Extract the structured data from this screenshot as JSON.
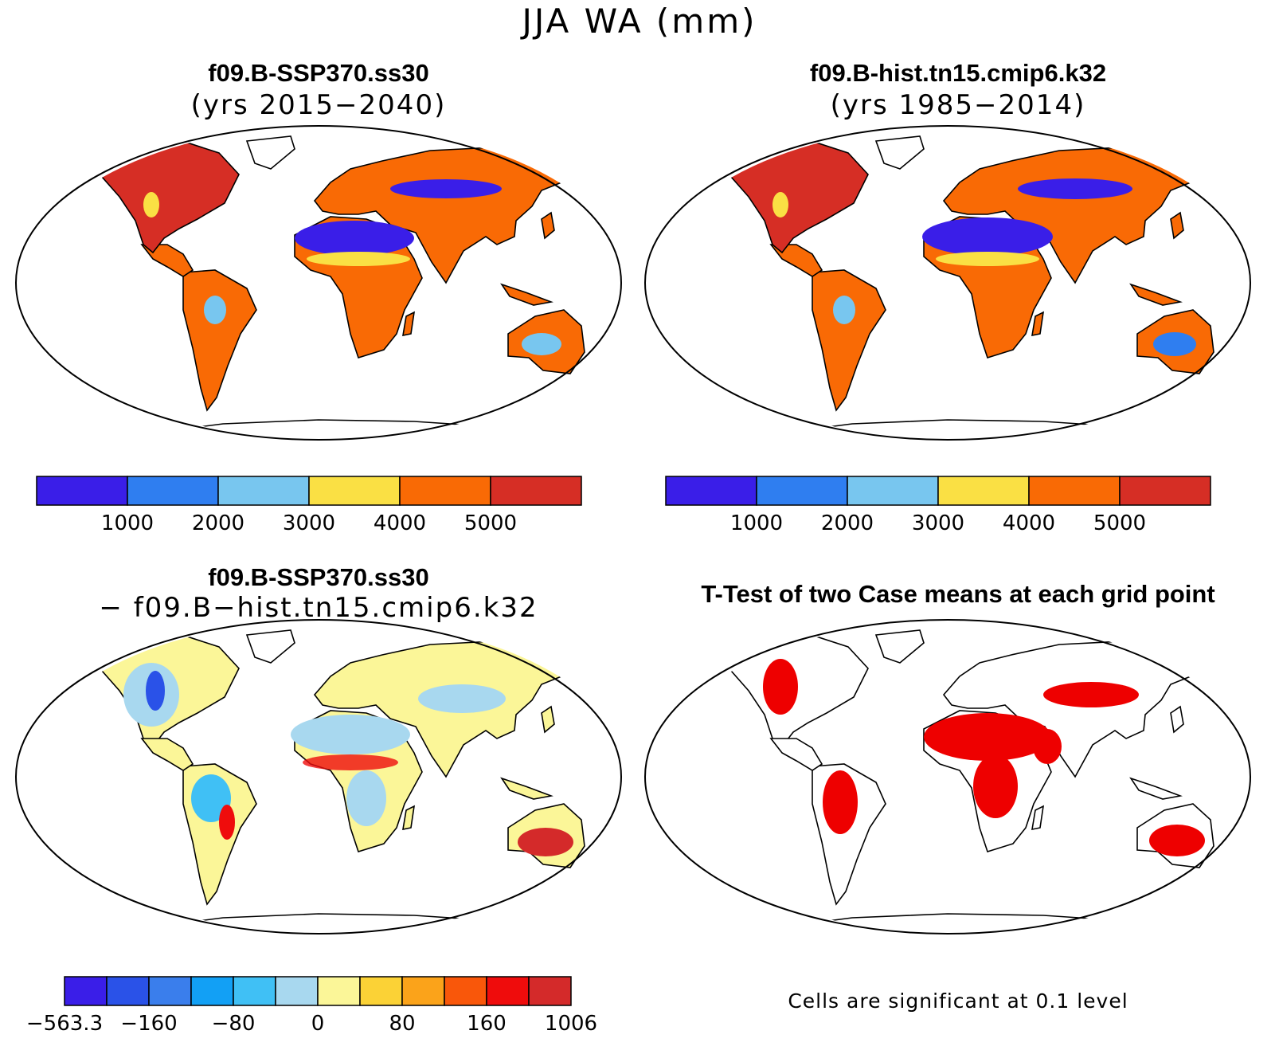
{
  "figure": {
    "title": "JJA WA (mm)",
    "panels": [
      {
        "title": "f09.B-SSP370.ss30",
        "subtitle": "(yrs 2015−2040)",
        "colorbar": {
          "colors": [
            "#3a1ee8",
            "#2f7ef0",
            "#78c6ef",
            "#fae044",
            "#f96a05",
            "#d62e25"
          ],
          "ticks": [
            "1000",
            "2000",
            "3000",
            "4000",
            "5000"
          ]
        }
      },
      {
        "title": "f09.B-hist.tn15.cmip6.k32",
        "subtitle": "(yrs 1985−2014)",
        "colorbar": {
          "colors": [
            "#3a1ee8",
            "#2f7ef0",
            "#78c6ef",
            "#fae044",
            "#f96a05",
            "#d62e25"
          ],
          "ticks": [
            "1000",
            "2000",
            "3000",
            "4000",
            "5000"
          ]
        }
      },
      {
        "title": "f09.B-SSP370.ss30",
        "subtitle": "− f09.B−hist.tn15.cmip6.k32",
        "colorbar": {
          "colors": [
            "#3a1ee8",
            "#2a52e8",
            "#3a7eec",
            "#12a0f5",
            "#40c0f5",
            "#a8d8ef",
            "#fbf698",
            "#fbd236",
            "#fba31a",
            "#f9570a",
            "#ef0c0c",
            "#d42a2a"
          ],
          "ticks": [
            "−563.3",
            "−160",
            "−80",
            "0",
            "80",
            "160",
            "1006"
          ]
        }
      },
      {
        "title": "T-Test of two Case means at each grid point",
        "note": "Cells are significant at 0.1 level",
        "significant_color": "#ee0000"
      }
    ]
  }
}
